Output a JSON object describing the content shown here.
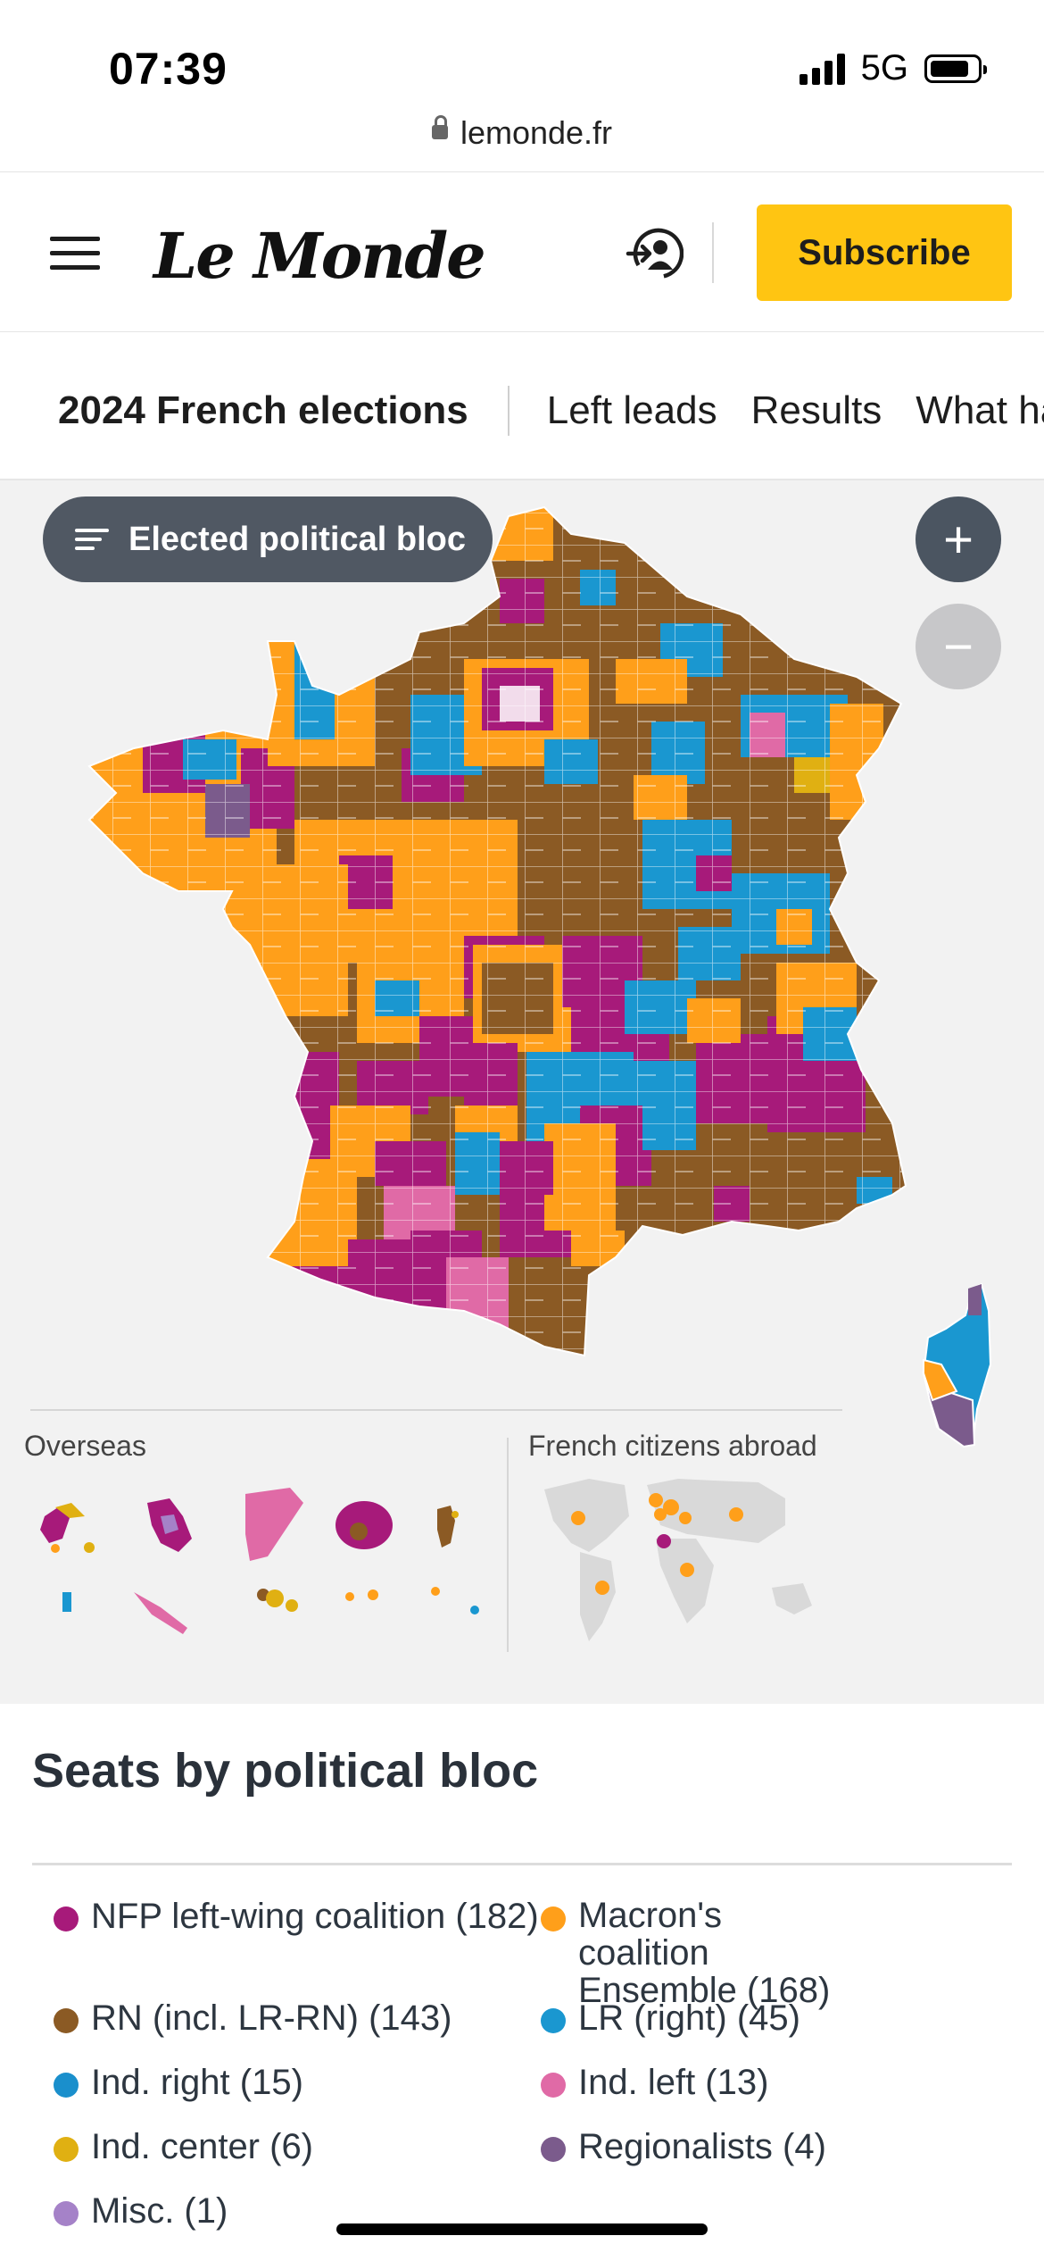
{
  "status_bar": {
    "time": "07:39",
    "network": "5G"
  },
  "browser": {
    "url": "lemonde.fr"
  },
  "header": {
    "logo": "Le Monde",
    "subscribe_label": "Subscribe"
  },
  "nav": {
    "title": "2024 French elections",
    "items": [
      "Left leads",
      "Results",
      "What happen"
    ]
  },
  "map": {
    "filter_label": "Elected political bloc",
    "zoom_in": "+",
    "zoom_out": "−",
    "overseas_label": "Overseas",
    "abroad_label": "French citizens abroad"
  },
  "legend": {
    "title": "Seats by political bloc",
    "items": [
      {
        "label": "NFP left-wing coalition (182)",
        "color": "#a71a7a"
      },
      {
        "label": "Macron's coalition Ensemble (168)",
        "color": "#ff9f1a"
      },
      {
        "label": "RN (incl. LR-RN) (143)",
        "color": "#8b5a24"
      },
      {
        "label": "LR (right) (45)",
        "color": "#1a97d0"
      },
      {
        "label": "Ind. right (15)",
        "color": "#1a8fcc"
      },
      {
        "label": "Ind. left (13)",
        "color": "#e06aa6"
      },
      {
        "label": "Ind. center (6)",
        "color": "#e0b012"
      },
      {
        "label": "Regionalists (4)",
        "color": "#7b5b8c"
      },
      {
        "label": "Misc. (1)",
        "color": "#a582c8"
      }
    ]
  }
}
